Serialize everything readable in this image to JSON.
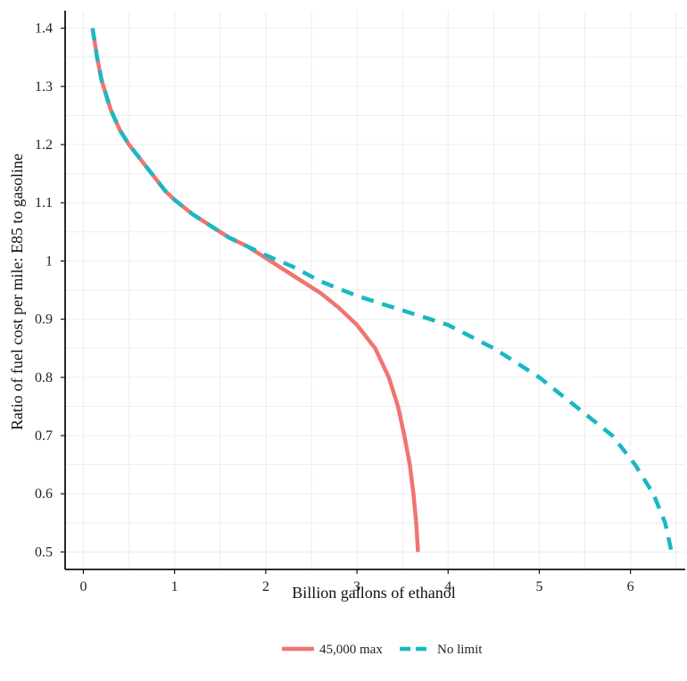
{
  "chart_data": {
    "type": "line",
    "title": "",
    "xlabel": "Billion gallons of ethanol",
    "ylabel": "Ratio of fuel cost per mile: E85 to gasoline",
    "xlim": [
      -0.2,
      6.6
    ],
    "ylim": [
      0.47,
      1.43
    ],
    "x_ticks": [
      0,
      1,
      2,
      3,
      4,
      5,
      6
    ],
    "x_tick_labels": [
      "0",
      "1",
      "2",
      "3",
      "4",
      "5",
      "6"
    ],
    "y_ticks": [
      0.5,
      0.6,
      0.7,
      0.8,
      0.9,
      1.0,
      1.1,
      1.2,
      1.3,
      1.4
    ],
    "y_tick_labels": [
      "0.5",
      "0.6",
      "0.7",
      "0.8",
      "0.9",
      "1",
      "1.1",
      "1.2",
      "1.3",
      "1.4"
    ],
    "grid": true,
    "legend_position": "bottom",
    "series": [
      {
        "name": "45,000 max",
        "color": "#F07470",
        "dash": "solid",
        "points": [
          [
            0.1,
            1.4
          ],
          [
            0.15,
            1.35
          ],
          [
            0.2,
            1.31
          ],
          [
            0.3,
            1.26
          ],
          [
            0.4,
            1.225
          ],
          [
            0.5,
            1.2
          ],
          [
            0.6,
            1.18
          ],
          [
            0.7,
            1.16
          ],
          [
            0.8,
            1.14
          ],
          [
            0.9,
            1.12
          ],
          [
            1.0,
            1.105
          ],
          [
            1.2,
            1.08
          ],
          [
            1.4,
            1.06
          ],
          [
            1.6,
            1.04
          ],
          [
            1.8,
            1.025
          ],
          [
            2.0,
            1.005
          ],
          [
            2.2,
            0.985
          ],
          [
            2.4,
            0.965
          ],
          [
            2.6,
            0.945
          ],
          [
            2.8,
            0.92
          ],
          [
            3.0,
            0.89
          ],
          [
            3.2,
            0.85
          ],
          [
            3.35,
            0.8
          ],
          [
            3.45,
            0.75
          ],
          [
            3.52,
            0.7
          ],
          [
            3.58,
            0.65
          ],
          [
            3.62,
            0.6
          ],
          [
            3.65,
            0.55
          ],
          [
            3.67,
            0.5
          ]
        ]
      },
      {
        "name": "No limit",
        "color": "#18B8C4",
        "dash": "dashed",
        "points": [
          [
            0.1,
            1.4
          ],
          [
            0.15,
            1.35
          ],
          [
            0.2,
            1.31
          ],
          [
            0.3,
            1.26
          ],
          [
            0.4,
            1.225
          ],
          [
            0.5,
            1.2
          ],
          [
            0.6,
            1.18
          ],
          [
            0.7,
            1.16
          ],
          [
            0.8,
            1.14
          ],
          [
            0.9,
            1.12
          ],
          [
            1.0,
            1.105
          ],
          [
            1.2,
            1.08
          ],
          [
            1.4,
            1.06
          ],
          [
            1.6,
            1.04
          ],
          [
            1.8,
            1.025
          ],
          [
            2.0,
            1.01
          ],
          [
            2.3,
            0.99
          ],
          [
            2.6,
            0.965
          ],
          [
            3.0,
            0.94
          ],
          [
            3.5,
            0.915
          ],
          [
            4.0,
            0.89
          ],
          [
            4.5,
            0.85
          ],
          [
            5.0,
            0.8
          ],
          [
            5.4,
            0.75
          ],
          [
            5.8,
            0.7
          ],
          [
            6.05,
            0.65
          ],
          [
            6.25,
            0.6
          ],
          [
            6.38,
            0.55
          ],
          [
            6.45,
            0.5
          ]
        ]
      }
    ]
  }
}
